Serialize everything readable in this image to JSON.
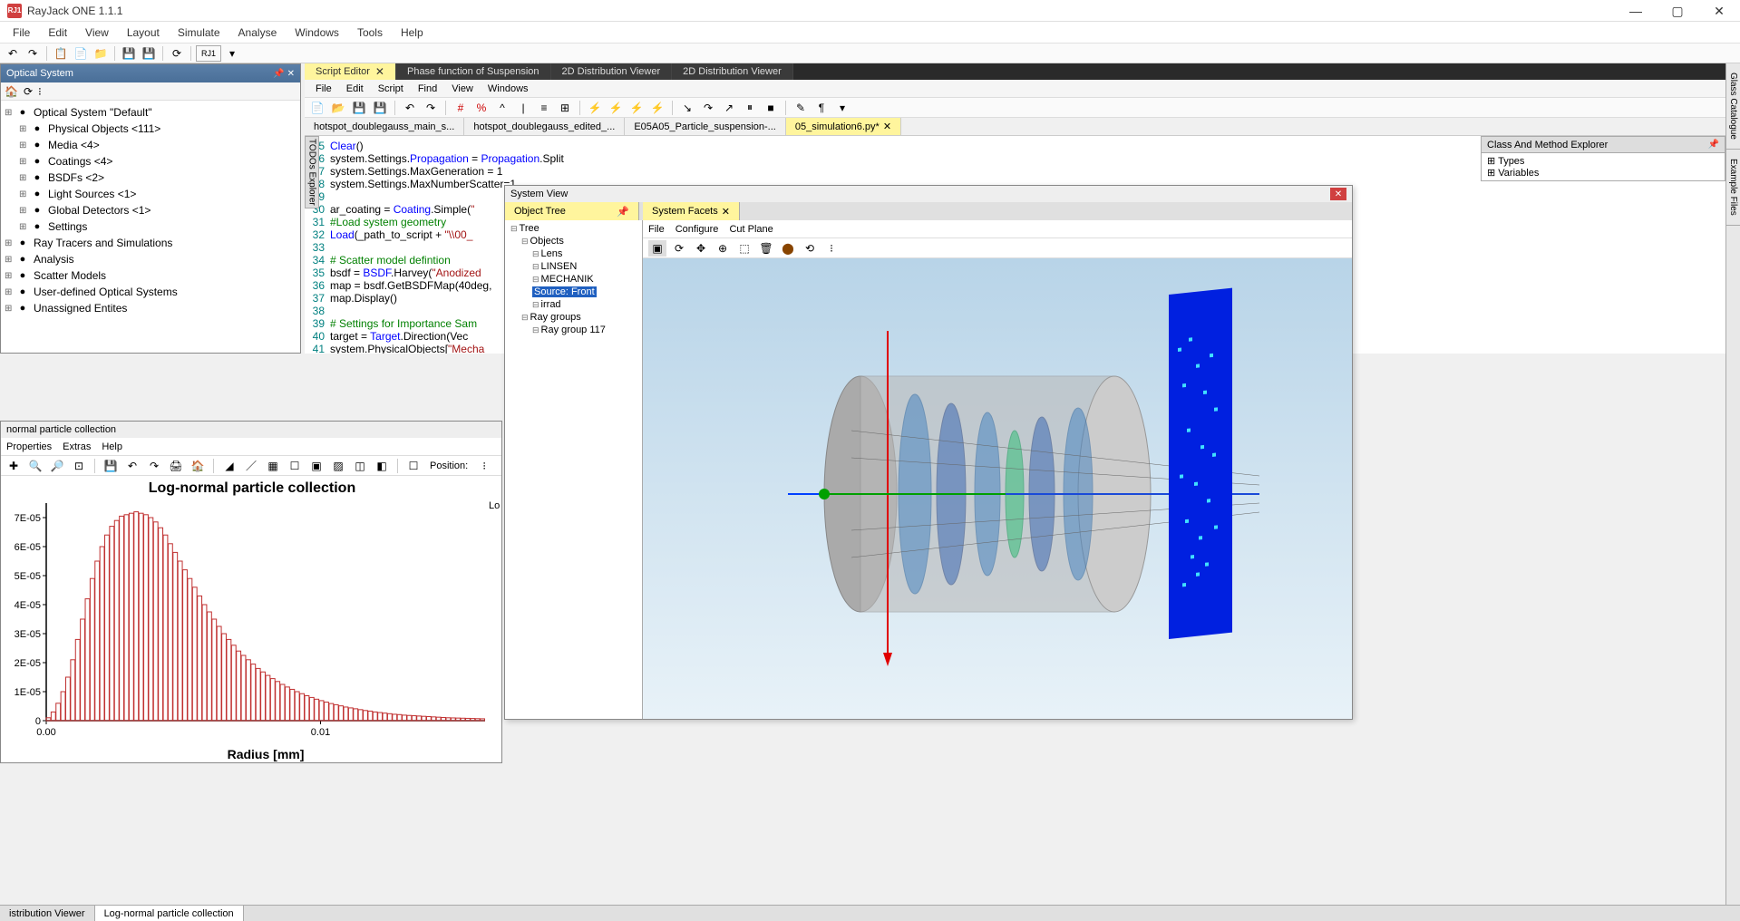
{
  "app": {
    "title": "RayJack ONE 1.1.1",
    "icon_label": "RJ1"
  },
  "window_controls": {
    "min": "—",
    "max": "▢",
    "close": "✕"
  },
  "menubar": [
    "File",
    "Edit",
    "View",
    "Layout",
    "Simulate",
    "Analyse",
    "Windows",
    "Tools",
    "Help"
  ],
  "main_toolbar_icons": [
    "undo",
    "redo",
    "sep",
    "copy",
    "paste",
    "folder",
    "sep",
    "save",
    "saveall",
    "sep",
    "refresh",
    "sep",
    "rj1",
    "sep",
    "drop"
  ],
  "left_panel": {
    "title": "Optical System",
    "toolbar": [
      "home-icon",
      "refresh-icon",
      "filter-icon"
    ],
    "tree": [
      {
        "label": "Optical System \"Default\"",
        "icon": "globe"
      },
      {
        "label": "Physical Objects <111>",
        "icon": "cube",
        "indent": 1
      },
      {
        "label": "Media <4>",
        "icon": "flask",
        "indent": 1
      },
      {
        "label": "Coatings <4>",
        "icon": "layers",
        "indent": 1
      },
      {
        "label": "BSDFs <2>",
        "icon": "scatter",
        "indent": 1
      },
      {
        "label": "Light Sources <1>",
        "icon": "bulb",
        "indent": 1
      },
      {
        "label": "Global Detectors <1>",
        "icon": "detector",
        "indent": 1
      },
      {
        "label": "Settings",
        "icon": "gear",
        "indent": 1
      },
      {
        "label": "Ray Tracers and Simulations",
        "icon": "rays"
      },
      {
        "label": "Analysis",
        "icon": "chart"
      },
      {
        "label": "Scatter Models",
        "icon": "model"
      },
      {
        "label": "User-defined Optical Systems",
        "icon": "user"
      },
      {
        "label": "Unassigned Entites",
        "icon": "unassigned"
      }
    ]
  },
  "doc_tabs": [
    {
      "label": "Script Editor",
      "active": true,
      "close": true
    },
    {
      "label": "Phase function of Suspension"
    },
    {
      "label": "2D Distribution Viewer"
    },
    {
      "label": "2D Distribution Viewer"
    }
  ],
  "editor_menubar": [
    "File",
    "Edit",
    "Script",
    "Find",
    "View",
    "Windows"
  ],
  "editor_toolbar": [
    "new",
    "open",
    "save",
    "save-as",
    "sep",
    "undo",
    "redo",
    "sep",
    "hash",
    "percent",
    "caret",
    "pipe",
    "align",
    "tree",
    "sep",
    "bolt",
    "bolt-o",
    "bolt-d",
    "bolt-p",
    "sep",
    "step",
    "step-over",
    "step-out",
    "pause",
    "stop",
    "sep",
    "edit",
    "paragraph",
    "drop"
  ],
  "file_tabs": [
    {
      "label": "hotspot_doublegauss_main_s..."
    },
    {
      "label": "hotspot_doublegauss_edited_..."
    },
    {
      "label": "E05A05_Particle_suspension-..."
    },
    {
      "label": "05_simulation6.py*",
      "active": true,
      "close": true
    }
  ],
  "code_lines": [
    {
      "n": 25,
      "text": "Clear()"
    },
    {
      "n": 26,
      "text": "system.Settings.Propagation = Propagation.Split"
    },
    {
      "n": 27,
      "text": "system.Settings.MaxGeneration = 1"
    },
    {
      "n": 28,
      "text": "system.Settings.MaxNumberScatter=1"
    },
    {
      "n": 29,
      "text": ""
    },
    {
      "n": 30,
      "text": "ar_coating = Coating.Simple(\""
    },
    {
      "n": 31,
      "text": "#Load system geometry",
      "com": true
    },
    {
      "n": 32,
      "text": "Load(_path_to_script + \"\\\\00_"
    },
    {
      "n": 33,
      "text": ""
    },
    {
      "n": 34,
      "text": "# Scatter model defintion",
      "com": true
    },
    {
      "n": 35,
      "text": "bsdf = BSDF.Harvey(\"Anodized"
    },
    {
      "n": 36,
      "text": "map = bsdf.GetBSDFMap(40deg,"
    },
    {
      "n": 37,
      "text": "map.Display()"
    },
    {
      "n": 38,
      "text": ""
    },
    {
      "n": 39,
      "text": "# Settings for Importance Sam",
      "com": true
    },
    {
      "n": 40,
      "text": "target = Target.Direction(Vec"
    },
    {
      "n": 41,
      "text": "system.PhysicalObjects[\"Mecha"
    },
    {
      "n": 42,
      "text": ""
    }
  ],
  "todos_label": "TODOs Explorer",
  "right_panel": {
    "title": "Class And Method Explorer",
    "items": [
      "Types",
      "Variables"
    ]
  },
  "right_sidebar_tabs": [
    "Glass Catalogue",
    "Example Files"
  ],
  "system_view": {
    "title": "System View",
    "object_tree_title": "Object Tree",
    "facets_tab": "System Facets",
    "facets_menu": [
      "File",
      "Configure",
      "Cut Plane"
    ],
    "facets_toolbar": [
      "select",
      "refresh",
      "move",
      "center",
      "cube",
      "trash",
      "cylinder",
      "cycle",
      "filter"
    ],
    "tree": [
      {
        "label": "Tree",
        "indent": 0
      },
      {
        "label": "Objects",
        "indent": 1
      },
      {
        "label": "Lens",
        "indent": 2
      },
      {
        "label": "LINSEN",
        "indent": 2
      },
      {
        "label": "MECHANIK",
        "indent": 2
      },
      {
        "label": "Source: Front",
        "indent": 2,
        "sel": true
      },
      {
        "label": "irrad",
        "indent": 2
      },
      {
        "label": "Ray groups",
        "indent": 1
      },
      {
        "label": "Ray group 117",
        "indent": 2
      }
    ]
  },
  "chart_window": {
    "title": "normal particle collection",
    "menubar": [
      "Properties",
      "Extras",
      "Help"
    ],
    "toolbar": [
      "add",
      "search",
      "zoom",
      "fit",
      "sep",
      "save",
      "undo",
      "redo",
      "print",
      "home",
      "sep",
      "tool1",
      "line",
      "grid",
      "box",
      "box2",
      "hatch",
      "crop",
      "layout",
      "sep",
      "blank",
      "Position:",
      "filter"
    ],
    "plot": {
      "type": "histogram",
      "title": "Log-normal particle collection",
      "title_fontsize": 16,
      "xlabel": "Radius [mm]",
      "ylabel": "",
      "label_fontsize": 14,
      "xlim": [
        0,
        0.016
      ],
      "ylim": [
        0,
        7.5e-05
      ],
      "xticks": [
        0.0,
        0.01
      ],
      "xtick_labels": [
        "0.00",
        "0.01"
      ],
      "yticks": [
        0,
        1e-05,
        2e-05,
        3e-05,
        4e-05,
        5e-05,
        6e-05,
        7e-05
      ],
      "ytick_labels": [
        "0",
        "1E-05",
        "2E-05",
        "3E-05",
        "4E-05",
        "5E-05",
        "6E-05",
        "7E-05"
      ],
      "bar_color": "#d04040",
      "bar_fill": "#ffffff",
      "bar_outline": "#c03030",
      "n_bars": 90,
      "peak_index": 18,
      "peak_value": 7.2e-05,
      "legend_text": "Lo",
      "background_color": "#ffffff",
      "values": [
        0.1,
        0.3,
        0.6,
        1.0,
        1.5,
        2.1,
        2.8,
        3.5,
        4.2,
        4.9,
        5.5,
        6.0,
        6.4,
        6.7,
        6.9,
        7.05,
        7.1,
        7.15,
        7.2,
        7.15,
        7.1,
        7.0,
        6.85,
        6.65,
        6.4,
        6.1,
        5.8,
        5.5,
        5.2,
        4.9,
        4.6,
        4.3,
        4.0,
        3.75,
        3.5,
        3.25,
        3.0,
        2.8,
        2.6,
        2.4,
        2.25,
        2.1,
        1.95,
        1.8,
        1.68,
        1.56,
        1.45,
        1.35,
        1.25,
        1.16,
        1.08,
        1.0,
        0.93,
        0.86,
        0.8,
        0.74,
        0.69,
        0.64,
        0.59,
        0.55,
        0.51,
        0.47,
        0.44,
        0.41,
        0.38,
        0.35,
        0.33,
        0.3,
        0.28,
        0.26,
        0.24,
        0.22,
        0.21,
        0.19,
        0.18,
        0.17,
        0.16,
        0.15,
        0.14,
        0.13,
        0.12,
        0.11,
        0.1,
        0.095,
        0.09,
        0.085,
        0.08,
        0.075,
        0.07,
        0.065
      ]
    }
  },
  "bottom_tabs": [
    {
      "label": "istribution Viewer"
    },
    {
      "label": "Log-normal particle collection",
      "active": true
    }
  ],
  "colors": {
    "panel_header": "#4a6f98",
    "active_tab": "#fff59d",
    "code_keyword": "#0000ff",
    "code_string": "#a31515",
    "code_comment": "#008000",
    "selection": "#2060c0"
  }
}
